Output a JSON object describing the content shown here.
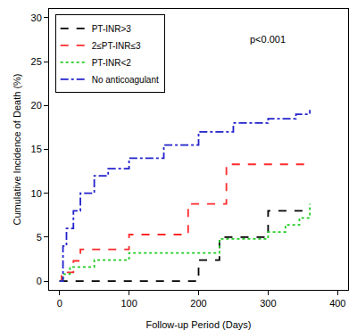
{
  "chart_data": {
    "type": "line",
    "x_label": "Follow-up Period (Days)",
    "y_label": "Cumulative Incidence of Death (%)",
    "annotations": [
      {
        "text": "p<0.001",
        "x": 300,
        "y": 27.5
      }
    ],
    "xlim": [
      -15,
      415
    ],
    "xticks": [
      0,
      100,
      200,
      300,
      400
    ],
    "ylim": [
      -1,
      31
    ],
    "yticks": [
      0,
      5,
      10,
      15,
      20,
      25,
      30
    ],
    "grid": false,
    "legend": "upper left",
    "series": [
      {
        "name": "PT-INR>3",
        "color": "#000000",
        "line_style": "dashed",
        "x": [
          0,
          200,
          230,
          300,
          360
        ],
        "values": [
          0,
          2.4,
          5.0,
          8.0,
          8.0
        ]
      },
      {
        "name": "2≤PT-INR≤3",
        "color": "#ff2a2a",
        "line_style": "dashed",
        "x": [
          0,
          3,
          20,
          30,
          100,
          185,
          240,
          360
        ],
        "values": [
          0,
          1.0,
          2.3,
          3.6,
          5.3,
          8.8,
          13.3,
          13.3
        ]
      },
      {
        "name": "PT-INR<2",
        "color": "#22cc22",
        "line_style": "dotted",
        "x": [
          0,
          5,
          15,
          50,
          100,
          230,
          300,
          325,
          345,
          360
        ],
        "values": [
          0,
          0.8,
          1.6,
          2.4,
          3.2,
          4.8,
          5.6,
          6.4,
          7.2,
          8.8
        ]
      },
      {
        "name": "No anticoagulant",
        "color": "#2222cc",
        "line_style": "dashdot",
        "x": [
          0,
          5,
          10,
          20,
          30,
          50,
          70,
          100,
          150,
          200,
          250,
          300,
          340,
          360
        ],
        "values": [
          0,
          4,
          6,
          8,
          10,
          12,
          12.8,
          14,
          15.5,
          17,
          18,
          18.5,
          19,
          19.5
        ]
      }
    ]
  }
}
